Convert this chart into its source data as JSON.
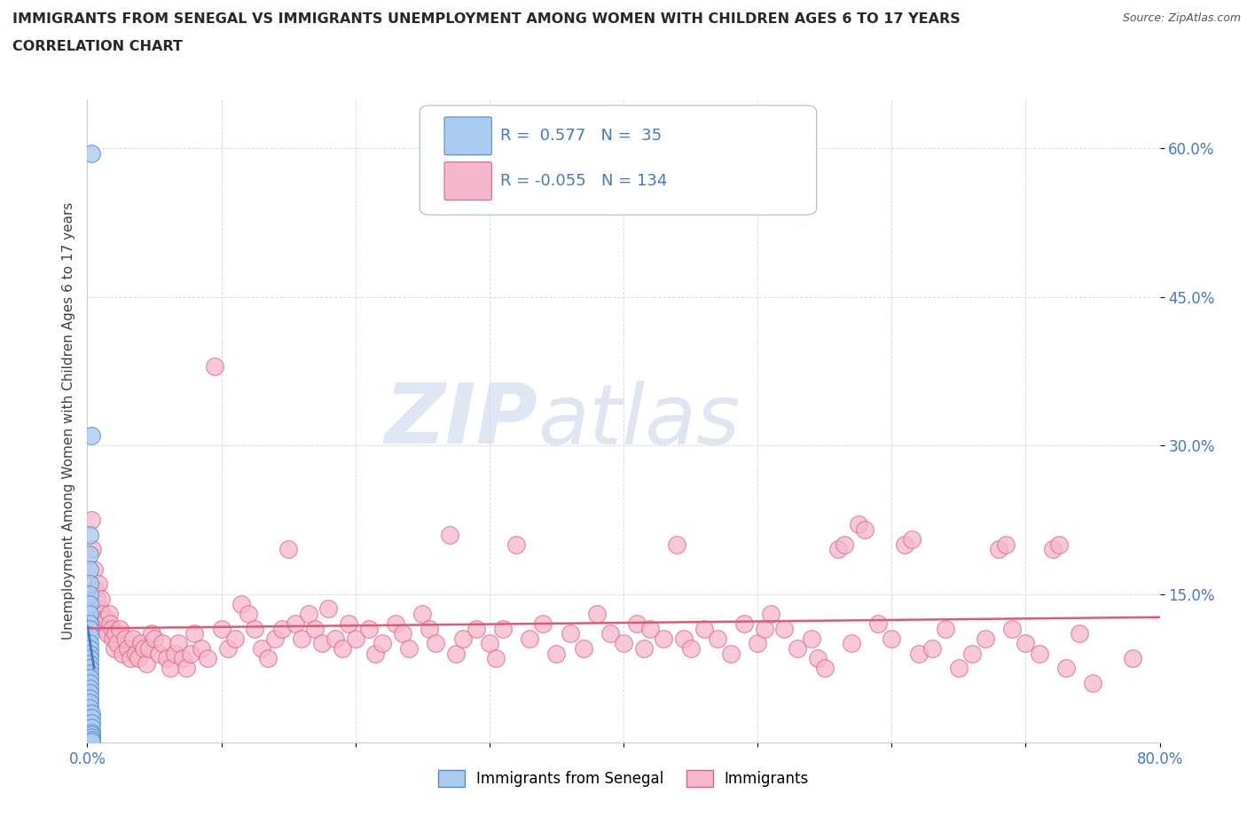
{
  "title_line1": "IMMIGRANTS FROM SENEGAL VS IMMIGRANTS UNEMPLOYMENT AMONG WOMEN WITH CHILDREN AGES 6 TO 17 YEARS",
  "title_line2": "CORRELATION CHART",
  "source_text": "Source: ZipAtlas.com",
  "ylabel": "Unemployment Among Women with Children Ages 6 to 17 years",
  "xlim": [
    0.0,
    0.8
  ],
  "ylim": [
    0.0,
    0.65
  ],
  "xticks": [
    0.0,
    0.1,
    0.2,
    0.3,
    0.4,
    0.5,
    0.6,
    0.7,
    0.8
  ],
  "xticklabels": [
    "0.0%",
    "",
    "",
    "",
    "",
    "",
    "",
    "",
    "80.0%"
  ],
  "yticks": [
    0.15,
    0.3,
    0.45,
    0.6
  ],
  "yticklabels": [
    "15.0%",
    "30.0%",
    "45.0%",
    "60.0%"
  ],
  "blue_r": 0.577,
  "blue_n": 35,
  "pink_r": -0.055,
  "pink_n": 134,
  "watermark_zip": "ZIP",
  "watermark_atlas": "atlas",
  "blue_color": "#aaccf0",
  "pink_color": "#f5b8cc",
  "blue_edge_color": "#5588cc",
  "pink_edge_color": "#e06080",
  "blue_line_color": "#4477cc",
  "pink_line_color": "#e05878",
  "legend_box_color": "#e8eef5",
  "tick_color": "#4477cc",
  "blue_scatter": [
    [
      0.003,
      0.595
    ],
    [
      0.003,
      0.31
    ],
    [
      0.002,
      0.21
    ],
    [
      0.002,
      0.19
    ],
    [
      0.002,
      0.175
    ],
    [
      0.002,
      0.16
    ],
    [
      0.002,
      0.15
    ],
    [
      0.002,
      0.14
    ],
    [
      0.002,
      0.13
    ],
    [
      0.002,
      0.12
    ],
    [
      0.002,
      0.115
    ],
    [
      0.002,
      0.108
    ],
    [
      0.002,
      0.1
    ],
    [
      0.002,
      0.095
    ],
    [
      0.002,
      0.09
    ],
    [
      0.002,
      0.085
    ],
    [
      0.002,
      0.08
    ],
    [
      0.002,
      0.075
    ],
    [
      0.002,
      0.07
    ],
    [
      0.002,
      0.065
    ],
    [
      0.002,
      0.06
    ],
    [
      0.002,
      0.055
    ],
    [
      0.002,
      0.05
    ],
    [
      0.002,
      0.045
    ],
    [
      0.002,
      0.04
    ],
    [
      0.002,
      0.035
    ],
    [
      0.003,
      0.03
    ],
    [
      0.003,
      0.025
    ],
    [
      0.003,
      0.02
    ],
    [
      0.003,
      0.015
    ],
    [
      0.003,
      0.01
    ],
    [
      0.003,
      0.008
    ],
    [
      0.003,
      0.005
    ],
    [
      0.003,
      0.003
    ],
    [
      0.003,
      0.001
    ]
  ],
  "pink_scatter": [
    [
      0.003,
      0.225
    ],
    [
      0.004,
      0.195
    ],
    [
      0.005,
      0.175
    ],
    [
      0.006,
      0.155
    ],
    [
      0.007,
      0.145
    ],
    [
      0.008,
      0.16
    ],
    [
      0.009,
      0.135
    ],
    [
      0.01,
      0.145
    ],
    [
      0.011,
      0.13
    ],
    [
      0.012,
      0.125
    ],
    [
      0.013,
      0.115
    ],
    [
      0.014,
      0.125
    ],
    [
      0.015,
      0.11
    ],
    [
      0.016,
      0.13
    ],
    [
      0.017,
      0.12
    ],
    [
      0.018,
      0.115
    ],
    [
      0.019,
      0.105
    ],
    [
      0.02,
      0.095
    ],
    [
      0.021,
      0.11
    ],
    [
      0.022,
      0.1
    ],
    [
      0.024,
      0.115
    ],
    [
      0.026,
      0.09
    ],
    [
      0.028,
      0.105
    ],
    [
      0.03,
      0.095
    ],
    [
      0.032,
      0.085
    ],
    [
      0.034,
      0.105
    ],
    [
      0.036,
      0.09
    ],
    [
      0.038,
      0.085
    ],
    [
      0.04,
      0.1
    ],
    [
      0.042,
      0.095
    ],
    [
      0.044,
      0.08
    ],
    [
      0.046,
      0.095
    ],
    [
      0.048,
      0.11
    ],
    [
      0.05,
      0.105
    ],
    [
      0.053,
      0.09
    ],
    [
      0.056,
      0.1
    ],
    [
      0.059,
      0.085
    ],
    [
      0.062,
      0.075
    ],
    [
      0.065,
      0.09
    ],
    [
      0.068,
      0.1
    ],
    [
      0.071,
      0.085
    ],
    [
      0.074,
      0.075
    ],
    [
      0.077,
      0.09
    ],
    [
      0.08,
      0.11
    ],
    [
      0.085,
      0.095
    ],
    [
      0.09,
      0.085
    ],
    [
      0.095,
      0.38
    ],
    [
      0.1,
      0.115
    ],
    [
      0.105,
      0.095
    ],
    [
      0.11,
      0.105
    ],
    [
      0.115,
      0.14
    ],
    [
      0.12,
      0.13
    ],
    [
      0.125,
      0.115
    ],
    [
      0.13,
      0.095
    ],
    [
      0.135,
      0.085
    ],
    [
      0.14,
      0.105
    ],
    [
      0.145,
      0.115
    ],
    [
      0.15,
      0.195
    ],
    [
      0.155,
      0.12
    ],
    [
      0.16,
      0.105
    ],
    [
      0.165,
      0.13
    ],
    [
      0.17,
      0.115
    ],
    [
      0.175,
      0.1
    ],
    [
      0.18,
      0.135
    ],
    [
      0.185,
      0.105
    ],
    [
      0.19,
      0.095
    ],
    [
      0.195,
      0.12
    ],
    [
      0.2,
      0.105
    ],
    [
      0.21,
      0.115
    ],
    [
      0.215,
      0.09
    ],
    [
      0.22,
      0.1
    ],
    [
      0.23,
      0.12
    ],
    [
      0.235,
      0.11
    ],
    [
      0.24,
      0.095
    ],
    [
      0.25,
      0.13
    ],
    [
      0.255,
      0.115
    ],
    [
      0.26,
      0.1
    ],
    [
      0.27,
      0.21
    ],
    [
      0.275,
      0.09
    ],
    [
      0.28,
      0.105
    ],
    [
      0.29,
      0.115
    ],
    [
      0.3,
      0.1
    ],
    [
      0.305,
      0.085
    ],
    [
      0.31,
      0.115
    ],
    [
      0.32,
      0.2
    ],
    [
      0.33,
      0.105
    ],
    [
      0.34,
      0.12
    ],
    [
      0.35,
      0.09
    ],
    [
      0.36,
      0.11
    ],
    [
      0.37,
      0.095
    ],
    [
      0.38,
      0.13
    ],
    [
      0.39,
      0.11
    ],
    [
      0.4,
      0.1
    ],
    [
      0.41,
      0.12
    ],
    [
      0.415,
      0.095
    ],
    [
      0.42,
      0.115
    ],
    [
      0.43,
      0.105
    ],
    [
      0.44,
      0.2
    ],
    [
      0.445,
      0.105
    ],
    [
      0.45,
      0.095
    ],
    [
      0.46,
      0.115
    ],
    [
      0.47,
      0.105
    ],
    [
      0.48,
      0.09
    ],
    [
      0.49,
      0.12
    ],
    [
      0.5,
      0.1
    ],
    [
      0.505,
      0.115
    ],
    [
      0.51,
      0.13
    ],
    [
      0.52,
      0.115
    ],
    [
      0.53,
      0.095
    ],
    [
      0.54,
      0.105
    ],
    [
      0.545,
      0.085
    ],
    [
      0.55,
      0.075
    ],
    [
      0.56,
      0.195
    ],
    [
      0.565,
      0.2
    ],
    [
      0.57,
      0.1
    ],
    [
      0.575,
      0.22
    ],
    [
      0.58,
      0.215
    ],
    [
      0.59,
      0.12
    ],
    [
      0.6,
      0.105
    ],
    [
      0.61,
      0.2
    ],
    [
      0.615,
      0.205
    ],
    [
      0.62,
      0.09
    ],
    [
      0.63,
      0.095
    ],
    [
      0.64,
      0.115
    ],
    [
      0.65,
      0.075
    ],
    [
      0.66,
      0.09
    ],
    [
      0.67,
      0.105
    ],
    [
      0.68,
      0.195
    ],
    [
      0.685,
      0.2
    ],
    [
      0.69,
      0.115
    ],
    [
      0.7,
      0.1
    ],
    [
      0.71,
      0.09
    ],
    [
      0.72,
      0.195
    ],
    [
      0.725,
      0.2
    ],
    [
      0.73,
      0.075
    ],
    [
      0.74,
      0.11
    ],
    [
      0.75,
      0.06
    ],
    [
      0.78,
      0.085
    ]
  ]
}
